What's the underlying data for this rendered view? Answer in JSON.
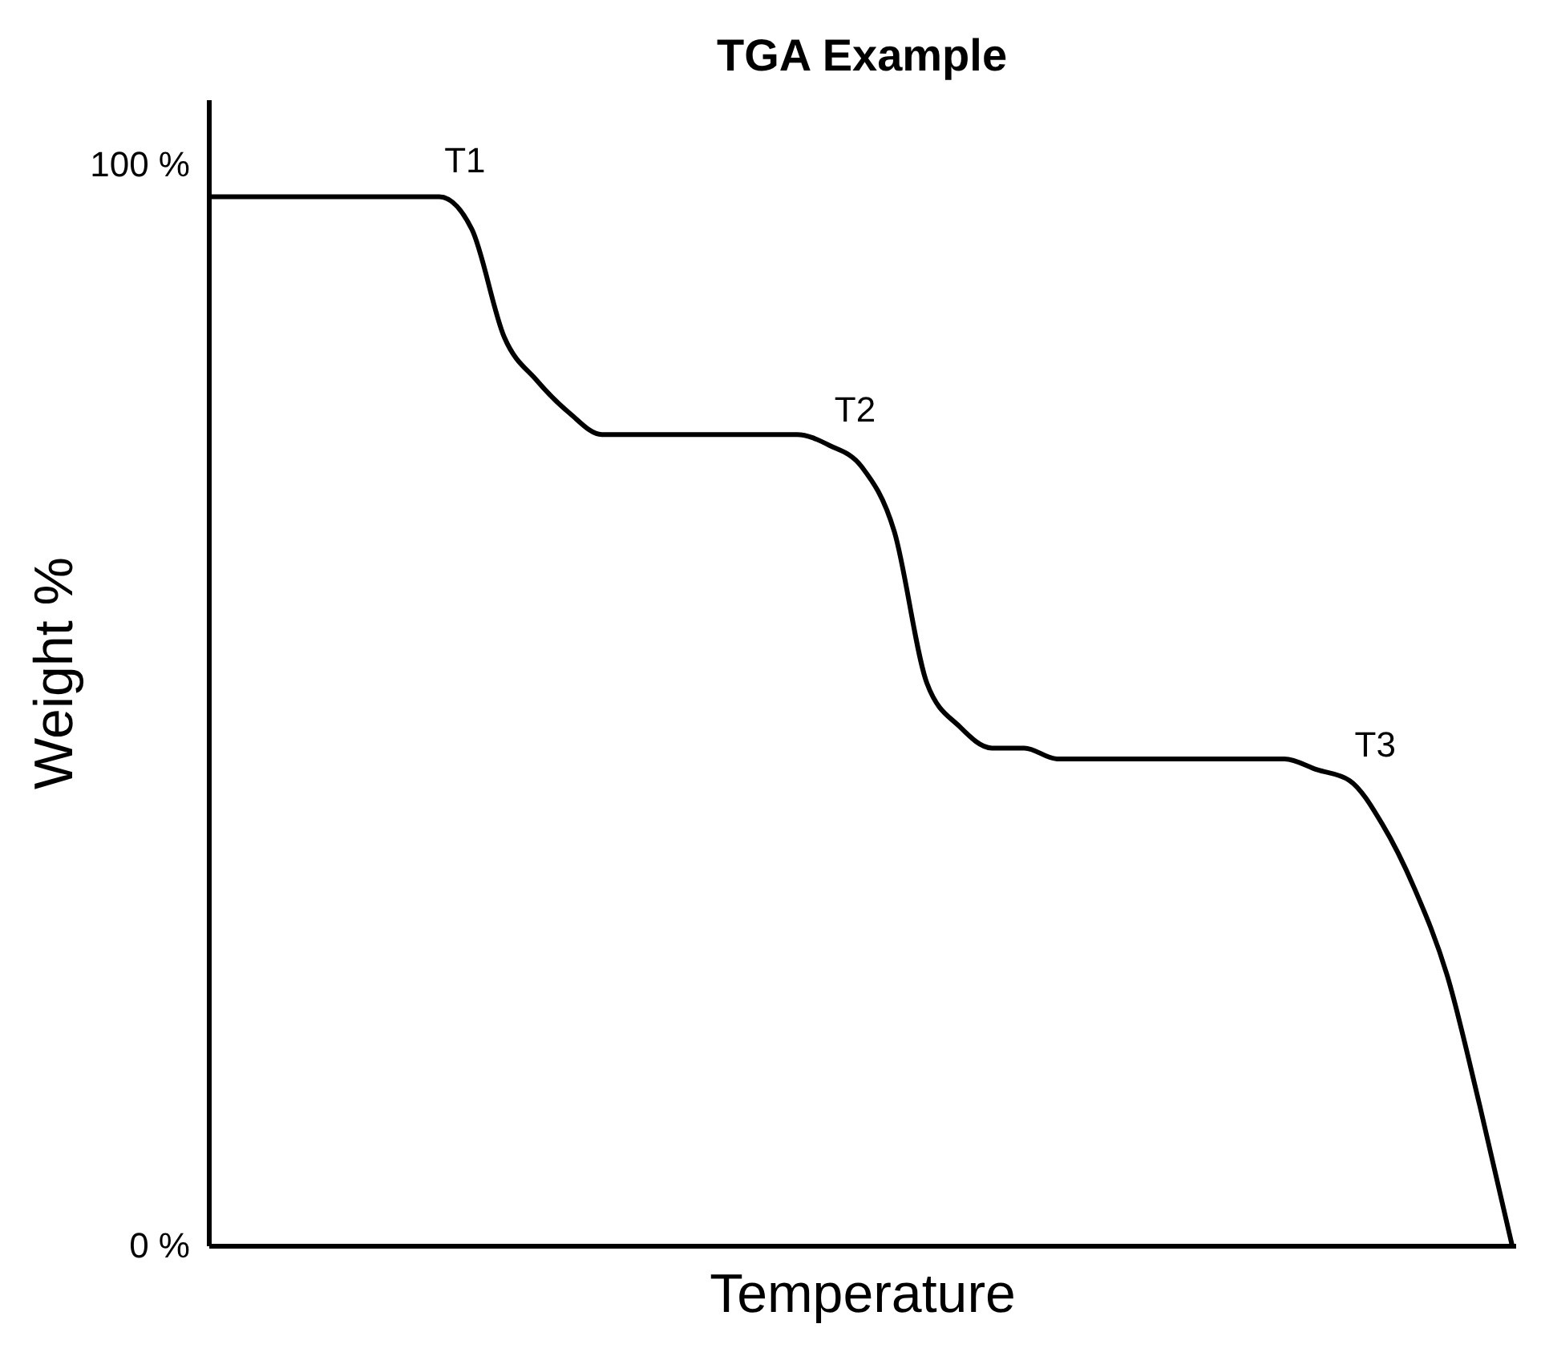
{
  "chart_data": {
    "type": "line",
    "title": "TGA Example",
    "xlabel": "Temperature",
    "ylabel": "Weight %",
    "categories": [
      null,
      null,
      null,
      null,
      null,
      null,
      null,
      null,
      null,
      null,
      null,
      null,
      null,
      null,
      null,
      null,
      null,
      null,
      null,
      null,
      null,
      null,
      null,
      null,
      null,
      null,
      null,
      null,
      null,
      null,
      null,
      null,
      null,
      null,
      null,
      null,
      null,
      null,
      null,
      null,
      null
    ],
    "series": [
      {
        "color": "#000000",
        "values": [
          97,
          97,
          97,
          97,
          97,
          97,
          97,
          97,
          94,
          84,
          80,
          77,
          75,
          75,
          75,
          75,
          75,
          75,
          75,
          74,
          72,
          66,
          52,
          48,
          46,
          46,
          45,
          45,
          45,
          45,
          45,
          45,
          45,
          45,
          44,
          43,
          39,
          33,
          25,
          13,
          0
        ]
      }
    ],
    "ylim": [
      0,
      106
    ],
    "yticks": [
      {
        "value": 0,
        "label": "0 %"
      },
      {
        "value": 100,
        "label": "100 %"
      }
    ],
    "tick_labels": "y",
    "grid": false,
    "marker": "none",
    "line_style": "solid",
    "annotations": [
      "T1",
      "T2",
      "T3"
    ]
  }
}
